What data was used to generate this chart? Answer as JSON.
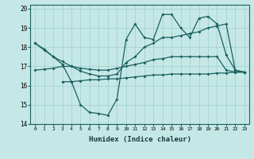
{
  "xlabel": "Humidex (Indice chaleur)",
  "background_color": "#c5e8e6",
  "line_color": "#1a6060",
  "xlim": [
    -0.5,
    23.5
  ],
  "ylim": [
    14,
    20.2
  ],
  "yticks": [
    14,
    15,
    16,
    17,
    18,
    19,
    20
  ],
  "xticks": [
    0,
    1,
    2,
    3,
    4,
    5,
    6,
    7,
    8,
    9,
    10,
    11,
    12,
    13,
    14,
    15,
    16,
    17,
    18,
    19,
    20,
    21,
    22,
    23
  ],
  "series": [
    {
      "x": [
        0,
        1,
        2,
        3,
        4,
        5,
        6,
        7,
        8,
        9,
        10,
        11,
        12,
        13,
        14,
        15,
        16,
        17,
        18,
        19,
        20,
        21,
        22,
        23
      ],
      "y": [
        18.2,
        17.9,
        17.5,
        17.1,
        16.2,
        15.0,
        14.6,
        14.55,
        14.45,
        15.3,
        18.4,
        19.2,
        18.5,
        18.4,
        19.7,
        19.7,
        19.0,
        18.5,
        19.5,
        19.6,
        19.2,
        17.6,
        16.8,
        16.7
      ]
    },
    {
      "x": [
        0,
        1,
        2,
        3,
        4,
        5,
        6,
        7,
        8,
        9,
        10,
        11,
        12,
        13,
        14,
        15,
        16,
        17,
        18,
        19,
        20,
        21,
        22,
        23
      ],
      "y": [
        18.2,
        17.85,
        17.5,
        17.25,
        17.0,
        16.75,
        16.6,
        16.5,
        16.5,
        16.6,
        17.2,
        17.5,
        18.0,
        18.2,
        18.5,
        18.5,
        18.6,
        18.7,
        18.8,
        19.0,
        19.1,
        19.2,
        16.8,
        16.7
      ]
    },
    {
      "x": [
        0,
        1,
        2,
        3,
        4,
        5,
        6,
        7,
        8,
        9,
        10,
        11,
        12,
        13,
        14,
        15,
        16,
        17,
        18,
        19,
        20,
        21,
        22,
        23
      ],
      "y": [
        16.8,
        16.85,
        16.9,
        17.0,
        17.0,
        16.9,
        16.85,
        16.8,
        16.8,
        16.9,
        17.0,
        17.1,
        17.2,
        17.35,
        17.4,
        17.5,
        17.5,
        17.5,
        17.5,
        17.5,
        17.5,
        16.8,
        16.7,
        16.7
      ]
    },
    {
      "x": [
        3,
        4,
        5,
        6,
        7,
        8,
        9,
        10,
        11,
        12,
        13,
        14,
        15,
        16,
        17,
        18,
        19,
        20,
        21,
        22,
        23
      ],
      "y": [
        16.2,
        16.2,
        16.25,
        16.3,
        16.3,
        16.35,
        16.35,
        16.4,
        16.45,
        16.5,
        16.55,
        16.55,
        16.6,
        16.6,
        16.6,
        16.6,
        16.6,
        16.65,
        16.65,
        16.7,
        16.7
      ]
    }
  ]
}
